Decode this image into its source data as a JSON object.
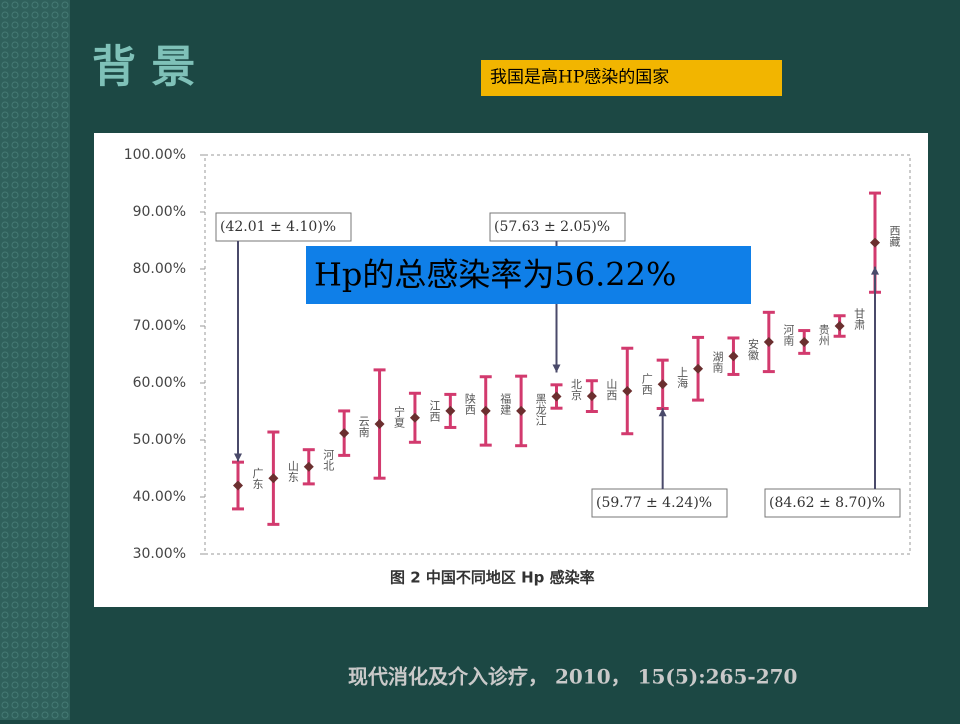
{
  "slide_title": "背 景",
  "highlight": "我国是高HP感染的国家",
  "overlay": "Hp的总感染率为56.22%",
  "citation": "现代消化及介入诊疗， 2010， 15(5):265-270",
  "chart_data": {
    "type": "errorbar",
    "caption": "图 2 中国不同地区 Hp 感染率",
    "categories": [
      "广东",
      "山东",
      "河北",
      "云南",
      "宁夏",
      "江西",
      "陕西",
      "福建",
      "黑龙江",
      "北京",
      "山西",
      "广西",
      "上海",
      "湖南",
      "安徽",
      "河南",
      "贵州",
      "甘肃",
      "西藏"
    ],
    "values": [
      42.01,
      43.3,
      45.3,
      51.2,
      52.8,
      53.9,
      55.1,
      55.1,
      55.1,
      57.63,
      57.7,
      58.6,
      59.77,
      62.5,
      64.7,
      67.2,
      67.2,
      70.0,
      84.62
    ],
    "errors": [
      4.1,
      8.1,
      3.0,
      3.9,
      9.5,
      4.3,
      2.9,
      6.0,
      6.1,
      2.05,
      2.7,
      7.5,
      4.24,
      5.5,
      3.2,
      5.2,
      2.0,
      1.8,
      8.7
    ],
    "bar_color": "#d23a6e",
    "marker_color": "#6b2f2f",
    "ylim": [
      30,
      100
    ],
    "yticks": [
      {
        "value": 30,
        "label": "30.00%"
      },
      {
        "value": 40,
        "label": "40.00%"
      },
      {
        "value": 50,
        "label": "50.00%"
      },
      {
        "value": 60,
        "label": "60.00%"
      },
      {
        "value": 70,
        "label": "70.00%"
      },
      {
        "value": 80,
        "label": "80.00%"
      },
      {
        "value": 90,
        "label": "90.00%"
      },
      {
        "value": 100,
        "label": "100.00%"
      }
    ],
    "grid": false,
    "annotations": [
      "(42.01 ± 4.10)%",
      "(57.63 ± 2.05)%",
      "(59.77 ± 4.24)%",
      "(84.62 ± 8.70)%"
    ]
  }
}
